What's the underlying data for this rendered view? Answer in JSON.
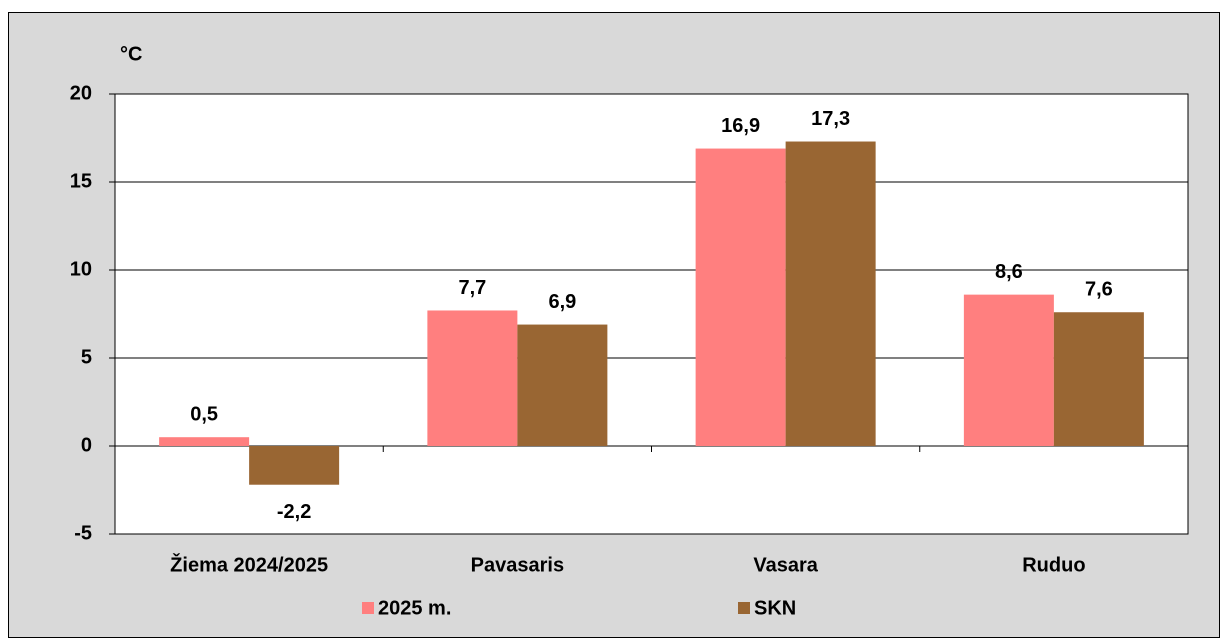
{
  "chart_data": {
    "type": "bar",
    "y_label": "°C",
    "categories": [
      "Žiema 2024/2025",
      "Pavasaris",
      "Vasara",
      "Ruduo"
    ],
    "series": [
      {
        "name": "2025 m.",
        "color": "#ff7f7f",
        "values": [
          0.5,
          7.7,
          16.9,
          8.6
        ],
        "value_labels": [
          "0,5",
          "7,7",
          "16,9",
          "8,6"
        ]
      },
      {
        "name": "SKN",
        "color": "#996633",
        "values": [
          -2.2,
          6.9,
          17.3,
          7.6
        ],
        "value_labels": [
          "-2,2",
          "6,9",
          "17,3",
          "7,6"
        ]
      }
    ],
    "ylim": [
      -5,
      20
    ],
    "yticks": [
      -5,
      0,
      5,
      10,
      15,
      20
    ],
    "grid": true,
    "legend": "bottom"
  }
}
